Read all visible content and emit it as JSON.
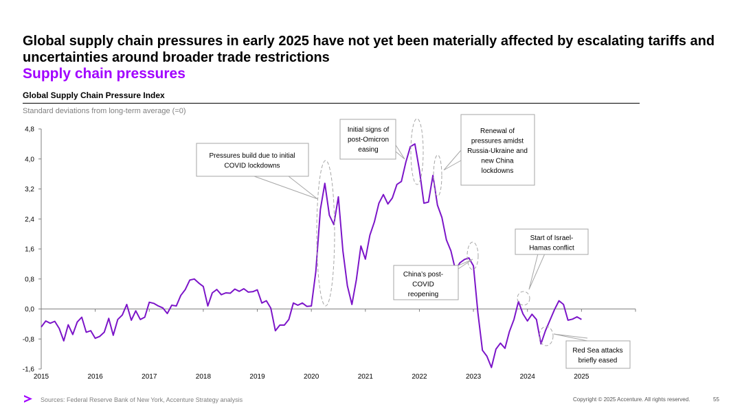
{
  "headline": "Global supply chain pressures in early 2025 have not yet been materially affected by escalating tariffs and uncertainties around broader trade restrictions",
  "subheadline": "Supply chain pressures",
  "chart_title": "Global Supply Chain Pressure Index",
  "units_label": "Standard deviations from long-term average (=0)",
  "colors": {
    "accent": "#a100ff",
    "line": "#7b14c8",
    "text_gray": "#7f7f7f",
    "dashed": "#a6a6a6"
  },
  "chart_data": {
    "type": "line",
    "title": "Global Supply Chain Pressure Index",
    "ylabel": "Standard deviations from long-term average (=0)",
    "xlabel": "",
    "ylim": [
      -1.6,
      4.8
    ],
    "y_ticks": [
      -1.6,
      -0.8,
      0.0,
      0.8,
      1.6,
      2.4,
      3.2,
      4.0,
      4.8
    ],
    "y_tick_labels": [
      "-1,6",
      "-0,8",
      "0,0",
      "0,8",
      "1,6",
      "2,4",
      "3,2",
      "4,0",
      "4,8"
    ],
    "x_range": [
      2015,
      2026
    ],
    "x_ticks": [
      2015,
      2016,
      2017,
      2018,
      2019,
      2020,
      2021,
      2022,
      2023,
      2024,
      2025
    ],
    "x_tick_labels": [
      "2015",
      "2016",
      "2017",
      "2018",
      "2019",
      "2020",
      "2021",
      "2022",
      "2023",
      "2024",
      "2025"
    ],
    "grid": false,
    "series": [
      {
        "name": "Global Supply Chain Pressure Index",
        "x_start": 2015.0,
        "step": 0.0833333,
        "values": [
          -0.48,
          -0.32,
          -0.38,
          -0.33,
          -0.52,
          -0.85,
          -0.42,
          -0.68,
          -0.35,
          -0.22,
          -0.62,
          -0.58,
          -0.78,
          -0.73,
          -0.62,
          -0.25,
          -0.7,
          -0.28,
          -0.16,
          0.12,
          -0.3,
          -0.05,
          -0.28,
          -0.22,
          0.18,
          0.15,
          0.08,
          0.03,
          -0.12,
          0.1,
          0.08,
          0.36,
          0.52,
          0.77,
          0.8,
          0.69,
          0.6,
          0.08,
          0.43,
          0.52,
          0.38,
          0.43,
          0.42,
          0.53,
          0.47,
          0.54,
          0.45,
          0.46,
          0.51,
          0.16,
          0.22,
          0.02,
          -0.58,
          -0.43,
          -0.43,
          -0.28,
          0.16,
          0.1,
          0.16,
          0.07,
          0.08,
          1.0,
          2.65,
          3.35,
          2.5,
          2.25,
          2.99,
          1.55,
          0.62,
          0.12,
          0.78,
          1.68,
          1.33,
          1.97,
          2.32,
          2.82,
          3.05,
          2.8,
          2.96,
          3.32,
          3.4,
          3.92,
          4.33,
          4.4,
          3.7,
          2.82,
          2.85,
          3.56,
          2.77,
          2.44,
          1.84,
          1.55,
          1.04,
          1.23,
          1.32,
          1.36,
          1.15,
          -0.1,
          -1.1,
          -1.26,
          -1.56,
          -1.07,
          -0.91,
          -1.05,
          -0.6,
          -0.28,
          0.2,
          -0.13,
          -0.32,
          -0.14,
          -0.28,
          -0.93,
          -0.58,
          -0.3,
          -0.02,
          0.22,
          0.12,
          -0.3,
          -0.27,
          -0.21,
          -0.28
        ]
      }
    ],
    "annotations": [
      "Pressures build due to initial COVID lockdowns",
      "Initial signs of post-Omicron easing",
      "Renewal of pressures amidst Russia-Ukraine and new China lockdowns",
      "China’s post-COVID reopening",
      "Start of Israel-Hamas conflict",
      "Red Sea attacks briefly eased"
    ]
  },
  "footer": {
    "logo_icon": "accenture-chevron-icon",
    "sources": "Sources: Federal Reserve Bank of New York, Accenture Strategy analysis",
    "copyright": "Copyright © 2025 Accenture. All rights reserved.",
    "page_number": "55"
  }
}
